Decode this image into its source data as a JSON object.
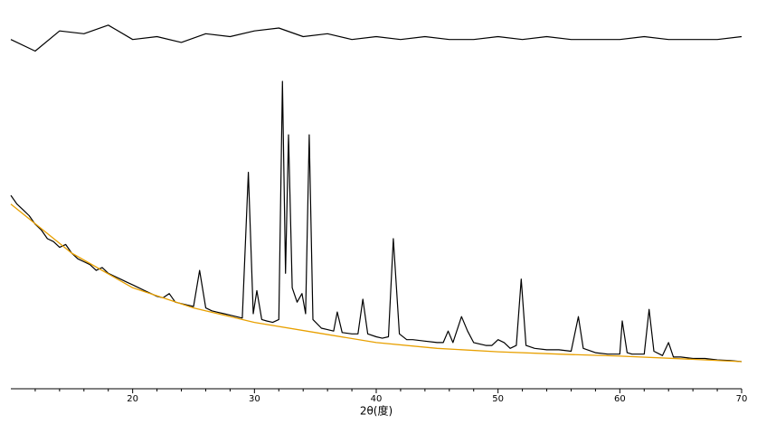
{
  "chart_data": {
    "type": "line",
    "x_label": "2θ(度)",
    "xlim": [
      10,
      70
    ],
    "xticks": [
      20,
      30,
      40,
      50,
      60,
      70
    ],
    "xminorticks": [
      12,
      14,
      16,
      18,
      22,
      24,
      26,
      28,
      32,
      34,
      36,
      38,
      42,
      44,
      46,
      48,
      52,
      54,
      56,
      58,
      62,
      64,
      66,
      68
    ],
    "ylim": [
      0,
      130
    ],
    "series": [
      {
        "color": "#000000",
        "x": [
          10,
          10.5,
          11,
          11.5,
          12,
          12.5,
          13,
          13.5,
          14,
          14.5,
          15,
          15.5,
          16,
          16.5,
          17,
          17.5,
          18,
          18.5,
          19,
          19.5,
          20,
          20.5,
          21,
          21.5,
          22,
          22.5,
          23,
          23.5,
          24,
          24.5,
          25,
          25.5,
          26,
          26.5,
          27,
          27.5,
          28,
          28.5,
          29,
          29.5,
          29.9,
          30.2,
          30.6,
          31,
          31.5,
          32,
          32.3,
          32.55,
          32.8,
          33.1,
          33.5,
          33.9,
          34.2,
          34.5,
          34.8,
          35.5,
          36,
          36.5,
          36.8,
          37.2,
          38,
          38.5,
          38.9,
          39.3,
          40,
          40.5,
          41,
          41.4,
          41.9,
          42.5,
          43,
          44,
          45,
          45.5,
          45.9,
          46.3,
          47,
          47.5,
          48,
          49,
          49.5,
          50,
          50.5,
          51,
          51.5,
          51.9,
          52.3,
          53,
          54,
          55,
          56,
          56.6,
          57,
          58,
          59,
          60,
          60.2,
          60.6,
          61,
          62,
          62.4,
          62.8,
          63.5,
          64,
          64.4,
          65,
          66,
          67,
          68,
          69,
          70
        ],
        "values": [
          67,
          64,
          62,
          60,
          57,
          55,
          52,
          51,
          49,
          50,
          47,
          45,
          44,
          43,
          41,
          42,
          40,
          39,
          38,
          37,
          36,
          35,
          34,
          33,
          32,
          31.5,
          33,
          30,
          29.5,
          29,
          28.5,
          41,
          28,
          27,
          26.5,
          26,
          25.5,
          25,
          24.5,
          75,
          26,
          34,
          24,
          23.5,
          23,
          24,
          106.5,
          40,
          88,
          35,
          30,
          33,
          26,
          88,
          24,
          21,
          20.5,
          20,
          26.6,
          19.5,
          19,
          19,
          31,
          19,
          18,
          17.5,
          18,
          52,
          19,
          17,
          17,
          16.5,
          16,
          16,
          20,
          16,
          25,
          20,
          16,
          15,
          15,
          17,
          16,
          14,
          15,
          38,
          15,
          14,
          13.5,
          13.5,
          13,
          25,
          14,
          12.5,
          12,
          12,
          23.5,
          12.5,
          12,
          12,
          27.5,
          13,
          11.5,
          16,
          11,
          11,
          10.5,
          10.5,
          10,
          9.8,
          9.4
        ]
      },
      {
        "color": "#e8a000",
        "x": [
          10,
          15,
          20,
          25,
          30,
          35,
          40,
          45,
          50,
          55,
          60,
          65,
          70
        ],
        "values": [
          64,
          47,
          35,
          28,
          23,
          19.5,
          16,
          14,
          12.8,
          12,
          11.3,
          10.4,
          9.4
        ]
      },
      {
        "color": "#000000",
        "x": [
          10,
          12,
          14,
          16,
          18,
          20,
          22,
          24,
          26,
          28,
          30,
          32,
          34,
          36,
          38,
          40,
          42,
          44,
          46,
          48,
          50,
          52,
          54,
          56,
          58,
          60,
          62,
          64,
          66,
          68,
          70
        ],
        "values": [
          121,
          117,
          124,
          123,
          126,
          121,
          122,
          120,
          123,
          122,
          124,
          125,
          122,
          123,
          121,
          122,
          121,
          122,
          121,
          121,
          122,
          121,
          122,
          121,
          121,
          121,
          122,
          121,
          121,
          121,
          122
        ]
      }
    ]
  }
}
